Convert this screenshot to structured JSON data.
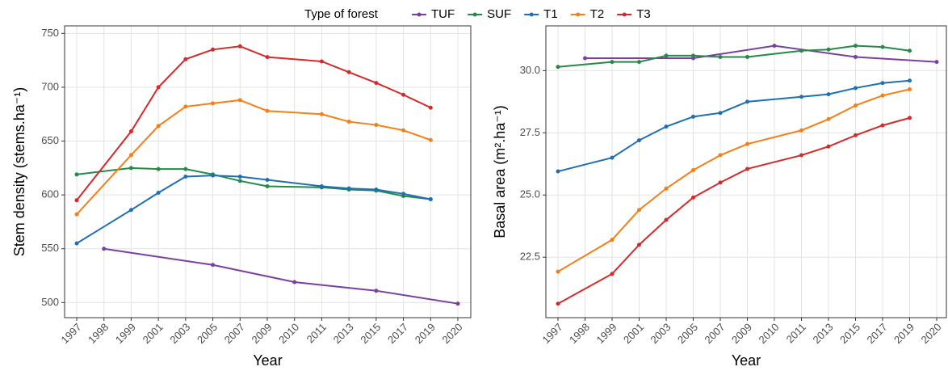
{
  "chart_data": [
    {
      "type": "line",
      "legend_title": "Type of forest",
      "legend_position": "top",
      "xlabel": "Year",
      "ylabel": "Stem density (stems.ha⁻¹)",
      "categories": [
        "1997",
        "1998",
        "1999",
        "2001",
        "2003",
        "2005",
        "2007",
        "2009",
        "2010",
        "2011",
        "2013",
        "2015",
        "2017",
        "2019",
        "2020"
      ],
      "ylim": [
        486,
        757
      ],
      "yticks": [
        500,
        550,
        600,
        650,
        700,
        750
      ],
      "grid": true,
      "series": [
        {
          "name": "TUF",
          "color": "#7b3f9e",
          "x": [
            "1998",
            "2005",
            "2010",
            "2015",
            "2020"
          ],
          "values": [
            550,
            535,
            519,
            511,
            499
          ]
        },
        {
          "name": "SUF",
          "color": "#238b45",
          "x": [
            "1997",
            "1999",
            "2001",
            "2003",
            "2005",
            "2007",
            "2009",
            "2011",
            "2013",
            "2015",
            "2017",
            "2019"
          ],
          "values": [
            619,
            625,
            624,
            624,
            619,
            613,
            608,
            607,
            605,
            604,
            599,
            596
          ]
        },
        {
          "name": "T1",
          "color": "#1f6fb4",
          "x": [
            "1997",
            "1999",
            "2001",
            "2003",
            "2005",
            "2007",
            "2009",
            "2011",
            "2013",
            "2015",
            "2017",
            "2019"
          ],
          "values": [
            555,
            586,
            602,
            617,
            618,
            617,
            614,
            608,
            606,
            605,
            601,
            596
          ]
        },
        {
          "name": "T2",
          "color": "#f57f17",
          "x": [
            "1997",
            "1999",
            "2001",
            "2003",
            "2005",
            "2007",
            "2009",
            "2011",
            "2013",
            "2015",
            "2017",
            "2019"
          ],
          "values": [
            582,
            637,
            664,
            682,
            685,
            688,
            678,
            675,
            668,
            665,
            660,
            651
          ]
        },
        {
          "name": "T3",
          "color": "#d42a2a",
          "x": [
            "1997",
            "1999",
            "2001",
            "2003",
            "2005",
            "2007",
            "2009",
            "2011",
            "2013",
            "2015",
            "2017",
            "2019"
          ],
          "values": [
            595,
            659,
            700,
            726,
            735,
            738,
            728,
            724,
            714,
            704,
            693,
            681
          ]
        }
      ]
    },
    {
      "type": "line",
      "xlabel": "Year",
      "ylabel": "Basal area (m².ha⁻¹)",
      "categories": [
        "1997",
        "1998",
        "1999",
        "2001",
        "2003",
        "2005",
        "2007",
        "2009",
        "2010",
        "2011",
        "2013",
        "2015",
        "2017",
        "2019",
        "2020"
      ],
      "ylim": [
        20.07,
        31.8
      ],
      "yticks": [
        22.5,
        {
          "value": 25,
          "label": "25.0"
        },
        27.5,
        {
          "value": 30,
          "label": "30.0"
        }
      ],
      "grid": true,
      "series": [
        {
          "color": "#7b3f9e",
          "x": [
            "1998",
            "2005",
            "2010",
            "2015",
            "2020"
          ],
          "values": [
            30.5,
            30.5,
            31.0,
            30.55,
            30.35
          ]
        },
        {
          "color": "#238b45",
          "x": [
            "1997",
            "1999",
            "2001",
            "2003",
            "2005",
            "2007",
            "2009",
            "2011",
            "2013",
            "2015",
            "2017",
            "2019"
          ],
          "values": [
            30.15,
            30.35,
            30.35,
            30.6,
            30.6,
            30.55,
            30.55,
            30.8,
            30.85,
            31.0,
            30.95,
            30.8
          ]
        },
        {
          "color": "#1f6fb4",
          "x": [
            "1997",
            "1999",
            "2001",
            "2003",
            "2005",
            "2007",
            "2009",
            "2011",
            "2013",
            "2015",
            "2017",
            "2019"
          ],
          "values": [
            25.95,
            26.5,
            27.2,
            27.75,
            28.15,
            28.3,
            28.75,
            28.95,
            29.05,
            29.3,
            29.5,
            29.6
          ]
        },
        {
          "color": "#f57f17",
          "x": [
            "1997",
            "1999",
            "2001",
            "2003",
            "2005",
            "2007",
            "2009",
            "2011",
            "2013",
            "2015",
            "2017",
            "2019"
          ],
          "values": [
            21.92,
            23.2,
            24.4,
            25.26,
            26.0,
            26.6,
            27.05,
            27.6,
            28.05,
            28.6,
            29.0,
            29.25
          ]
        },
        {
          "color": "#d42a2a",
          "x": [
            "1997",
            "1999",
            "2001",
            "2003",
            "2005",
            "2007",
            "2009",
            "2011",
            "2013",
            "2015",
            "2017",
            "2019"
          ],
          "values": [
            20.63,
            21.83,
            23.0,
            24.0,
            24.9,
            25.5,
            26.05,
            26.6,
            26.95,
            27.4,
            27.8,
            28.1
          ]
        }
      ]
    }
  ]
}
